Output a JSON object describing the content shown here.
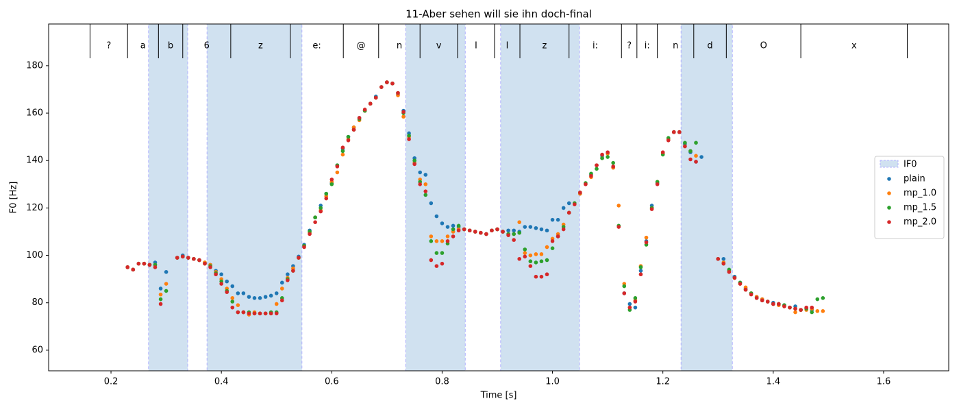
{
  "chart_data": {
    "type": "scatter",
    "title": "11-Aber sehen will sie ihn doch-final",
    "x_label": "Time [s]",
    "y_label": "F0 [Hz]",
    "xlim": [
      0.087,
      1.718
    ],
    "ylim": [
      51.3,
      197.6
    ],
    "xticks": [
      0.2,
      0.4,
      0.6,
      0.8,
      {
        "value": 1,
        "label": "1.0"
      },
      1.2,
      1.4,
      1.6
    ],
    "yticks": [
      60,
      80,
      100,
      120,
      140,
      160,
      180
    ],
    "segments": {
      "labels": [
        "?",
        "a",
        "b",
        "6",
        "z",
        "e:",
        "@",
        "n",
        "v",
        "I",
        "l",
        "z",
        "i:",
        "?",
        "i:",
        "n",
        "d",
        "O",
        "x"
      ],
      "boundaries": [
        0.162,
        0.23,
        0.286,
        0.33,
        0.417,
        0.525,
        0.621,
        0.685,
        0.76,
        0.828,
        0.895,
        0.941,
        1.03,
        1.125,
        1.153,
        1.19,
        1.256,
        1.315,
        1.45,
        1.643
      ]
    },
    "spans": {
      "name": "IF0",
      "color": "#d0e1f0",
      "ranges": [
        [
          0.268,
          0.339
        ],
        [
          0.374,
          0.546
        ],
        [
          0.734,
          0.842
        ],
        [
          0.906,
          1.049
        ],
        [
          1.233,
          1.326
        ]
      ]
    },
    "legend": "center right",
    "x": [
      0.23,
      0.24,
      0.25,
      0.26,
      0.27,
      0.28,
      0.29,
      0.3,
      0.31,
      0.32,
      0.33,
      0.34,
      0.35,
      0.36,
      0.37,
      0.38,
      0.39,
      0.4,
      0.41,
      0.42,
      0.43,
      0.44,
      0.45,
      0.46,
      0.47,
      0.48,
      0.49,
      0.5,
      0.51,
      0.52,
      0.53,
      0.54,
      0.55,
      0.56,
      0.57,
      0.58,
      0.59,
      0.6,
      0.61,
      0.62,
      0.63,
      0.64,
      0.65,
      0.66,
      0.67,
      0.68,
      0.69,
      0.7,
      0.71,
      0.72,
      0.73,
      0.74,
      0.75,
      0.76,
      0.77,
      0.78,
      0.79,
      0.8,
      0.81,
      0.82,
      0.83,
      0.84,
      0.85,
      0.86,
      0.87,
      0.88,
      0.89,
      0.9,
      0.91,
      0.92,
      0.93,
      0.94,
      0.95,
      0.96,
      0.97,
      0.98,
      0.99,
      1.0,
      1.01,
      1.02,
      1.03,
      1.04,
      1.05,
      1.06,
      1.07,
      1.08,
      1.09,
      1.1,
      1.11,
      1.12,
      1.13,
      1.14,
      1.15,
      1.16,
      1.17,
      1.18,
      1.19,
      1.2,
      1.21,
      1.22,
      1.23,
      1.24,
      1.25,
      1.26,
      1.27,
      1.28,
      1.29,
      1.3,
      1.31,
      1.32,
      1.33,
      1.34,
      1.35,
      1.36,
      1.37,
      1.38,
      1.39,
      1.4,
      1.41,
      1.42,
      1.43,
      1.44,
      1.45,
      1.46,
      1.47,
      1.48,
      1.49
    ],
    "series": [
      {
        "name": "plain",
        "color": "#1f77b4",
        "values": [
          95,
          94,
          96.5,
          96.5,
          96,
          97,
          86,
          93,
          null,
          99,
          100,
          99,
          98.5,
          98,
          97,
          96,
          93.5,
          92,
          89,
          87,
          84,
          84,
          82.5,
          82,
          82,
          82.5,
          83,
          84,
          88.5,
          92,
          95.5,
          99.5,
          104.5,
          110.5,
          116,
          121,
          126,
          130.5,
          138,
          145,
          150,
          154,
          158,
          161,
          164,
          167,
          171,
          173,
          172.5,
          168,
          161,
          151.5,
          141,
          135,
          134,
          122,
          116.5,
          113.5,
          112,
          112.5,
          112,
          111,
          110.5,
          110,
          109.5,
          109,
          110.5,
          111,
          110,
          110.5,
          110.5,
          110,
          112,
          112,
          111.5,
          111,
          110.5,
          115,
          115,
          120,
          122,
          122,
          126,
          130,
          134,
          138,
          142,
          143,
          137,
          null,
          84,
          79.5,
          78,
          93.5,
          106,
          121,
          130.5,
          143,
          149,
          152,
          152,
          147,
          143.5,
          139.5,
          141.5,
          null,
          null,
          null,
          98.5,
          93.5,
          91,
          88.5,
          86,
          84,
          82.5,
          81.5,
          80.5,
          80,
          79.5,
          79,
          78,
          78.5,
          77,
          77.5,
          77,
          null,
          null
        ]
      },
      {
        "name": "mp_1.0",
        "color": "#ff7f0e",
        "values": [
          95,
          94,
          96.5,
          96.5,
          96,
          96,
          83.5,
          88,
          null,
          99,
          99.5,
          99,
          98.5,
          98,
          97,
          96,
          93,
          90,
          86,
          82,
          79,
          76,
          75,
          76,
          75.5,
          75.5,
          75.5,
          79.5,
          86,
          90.5,
          94.5,
          99,
          104,
          109.5,
          116,
          119,
          125,
          131,
          135,
          142.5,
          149,
          154,
          157,
          161,
          164,
          166.5,
          171,
          173,
          172.5,
          167.5,
          158.5,
          150,
          139,
          132,
          130,
          108,
          106,
          106,
          108,
          110,
          111,
          111,
          110.5,
          110,
          109.5,
          109,
          110.5,
          111,
          110,
          109,
          109,
          114,
          101,
          100,
          100.5,
          100.5,
          103.5,
          107,
          109,
          113,
          118,
          122,
          126,
          130,
          133,
          138,
          141,
          143,
          137,
          121,
          88,
          78,
          81,
          95.5,
          107.5,
          120,
          131,
          143,
          149,
          152,
          152,
          146,
          144,
          142,
          null,
          null,
          null,
          null,
          97,
          93.5,
          90.5,
          88,
          86.5,
          84,
          82.5,
          81.5,
          80.5,
          79.5,
          79,
          78.5,
          78,
          76,
          77,
          77,
          77.5,
          76.5,
          76.5
        ]
      },
      {
        "name": "mp_1.5",
        "color": "#2ca02c",
        "values": [
          95,
          94,
          96.5,
          96.5,
          96,
          96,
          81.5,
          85,
          null,
          99,
          99.5,
          99,
          98.5,
          98,
          96.5,
          95.5,
          92.5,
          89,
          85,
          80.5,
          76,
          76,
          76,
          75.5,
          75.5,
          75.5,
          76,
          76,
          82,
          90,
          93.5,
          99,
          104,
          110,
          116,
          120,
          126,
          130,
          138,
          144,
          150,
          153,
          157.5,
          161,
          164,
          166.5,
          171,
          173,
          172.5,
          168.5,
          160,
          150.5,
          140,
          131,
          125.5,
          106,
          101,
          101,
          105,
          111,
          112.5,
          111,
          110.5,
          110,
          109.5,
          109,
          110.5,
          111,
          110,
          109,
          109,
          109.5,
          102.5,
          97.5,
          97,
          97.5,
          98,
          103,
          108,
          112,
          118,
          122,
          126.5,
          130.5,
          134.5,
          136.5,
          141,
          141.5,
          139,
          112.5,
          87,
          77,
          82,
          95,
          104.5,
          120,
          131,
          142.5,
          149.5,
          152,
          152,
          147.5,
          144,
          147.5,
          null,
          null,
          null,
          98.5,
          96.5,
          94,
          90.5,
          88.5,
          85.5,
          84,
          82,
          81,
          80.5,
          79.5,
          79.5,
          79,
          78,
          77.5,
          77,
          77.5,
          76,
          81.5,
          82
        ]
      },
      {
        "name": "mp_2.0",
        "color": "#d62728",
        "values": [
          95,
          94,
          96.5,
          96.5,
          96,
          95,
          79.5,
          null,
          null,
          99,
          99.5,
          99,
          98.5,
          98,
          96.5,
          95,
          92,
          88,
          84.5,
          78,
          76,
          76,
          75.5,
          75.5,
          75.5,
          75.5,
          75.5,
          75.5,
          81,
          89.5,
          93.5,
          99,
          103.5,
          109,
          114,
          118.5,
          124,
          132,
          137.5,
          145.5,
          148.5,
          153,
          158,
          161.5,
          164,
          166.5,
          171,
          173,
          172.5,
          168.5,
          160.5,
          149,
          138.5,
          130,
          127,
          98,
          95.5,
          96.5,
          106,
          108,
          110.5,
          111,
          110.5,
          110,
          109.5,
          109,
          110.5,
          111,
          110,
          108.5,
          106.5,
          98.5,
          99.5,
          95.5,
          91,
          91,
          92,
          106,
          108,
          111,
          118,
          121.5,
          126.5,
          130,
          133.5,
          138,
          142.5,
          143.5,
          137.5,
          112,
          84,
          78,
          80.5,
          92,
          105.5,
          119.5,
          130,
          143.5,
          148.5,
          152,
          152,
          146,
          140.5,
          139.5,
          null,
          null,
          null,
          98.5,
          96.5,
          93,
          90.5,
          88,
          85.5,
          83.5,
          82,
          81,
          80.5,
          79.5,
          79.5,
          78.5,
          78,
          77.5,
          77,
          78,
          78,
          null,
          null
        ]
      }
    ]
  }
}
